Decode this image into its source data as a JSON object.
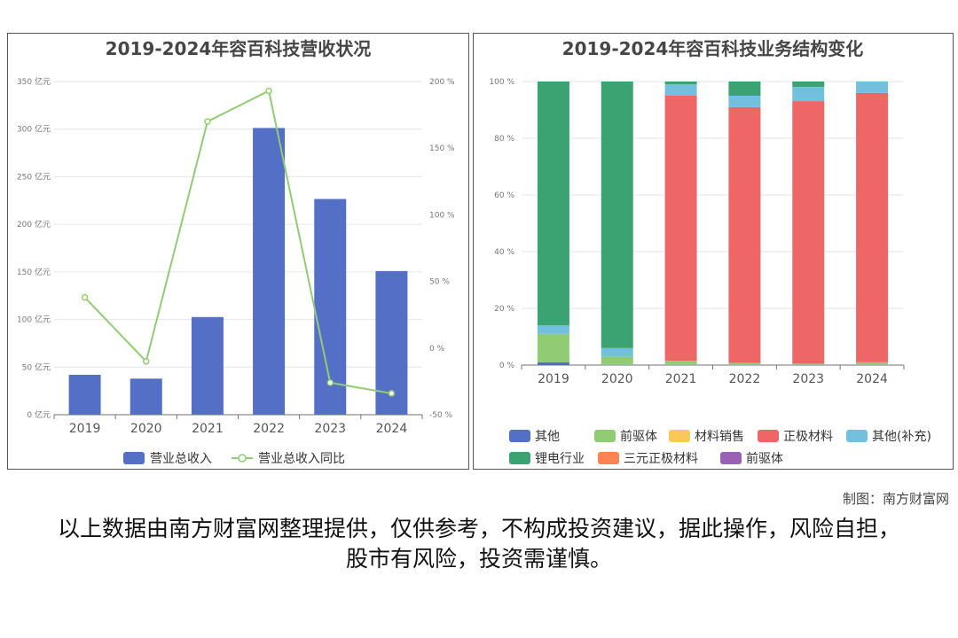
{
  "credit": "制图：南方财富网",
  "footer": "以上数据由南方财富网整理提供，仅供参考，不构成投资建议，据此操作，风险自担，股市有风险，投资需谨慎。",
  "chart_data": [
    {
      "type": "bar",
      "title": "2019-2024年容百科技营收状况",
      "categories": [
        "2019",
        "2020",
        "2021",
        "2022",
        "2023",
        "2024"
      ],
      "series": [
        {
          "name": "营业总收入",
          "type": "bar",
          "axis": "left",
          "color": "#5470c6",
          "values": [
            41.9,
            37.9,
            102.6,
            301.2,
            226.6,
            150.9
          ]
        },
        {
          "name": "营业总收入同比",
          "type": "line",
          "axis": "right",
          "color": "#91cc75",
          "values": [
            38,
            -10,
            170,
            193,
            -26,
            -34
          ]
        }
      ],
      "y_left": {
        "ticks": [
          "0 亿元",
          "50 亿元",
          "100 亿元",
          "150 亿元",
          "200 亿元",
          "250 亿元",
          "300 亿元",
          "350 亿元"
        ],
        "range": [
          0,
          350
        ]
      },
      "y_right": {
        "ticks": [
          "-50 %",
          "0 %",
          "50 %",
          "100 %",
          "150 %",
          "200 %"
        ],
        "range": [
          -50,
          200
        ]
      },
      "grid": true,
      "legend_position": "bottom"
    },
    {
      "type": "bar",
      "stacked": true,
      "title": "2019-2024年容百科技业务结构变化",
      "categories": [
        "2019",
        "2020",
        "2021",
        "2022",
        "2023",
        "2024"
      ],
      "series": [
        {
          "name": "其他",
          "color": "#5470c6",
          "values": [
            1,
            0,
            0,
            0,
            0,
            0
          ]
        },
        {
          "name": "前驱体",
          "color": "#91cc75",
          "values": [
            10,
            3,
            1.5,
            0.8,
            0.5,
            1
          ]
        },
        {
          "name": "材料销售",
          "color": "#fac858",
          "values": [
            0,
            0,
            0,
            0,
            0,
            0
          ]
        },
        {
          "name": "正极材料",
          "color": "#ee6666",
          "values": [
            0,
            0,
            93.5,
            90.2,
            92.6,
            95
          ]
        },
        {
          "name": "其他(补充)",
          "color": "#73c0de",
          "values": [
            3,
            3,
            4,
            4,
            5,
            4
          ]
        },
        {
          "name": "锂电行业",
          "color": "#3ba272",
          "values": [
            86,
            94,
            1,
            5,
            1.9,
            0
          ]
        },
        {
          "name": "三元正极材料",
          "color": "#fc8452",
          "values": [
            0,
            0,
            0,
            0,
            0,
            0
          ]
        },
        {
          "name": "前驱体",
          "color": "#9a60b4",
          "values": [
            0,
            0,
            0,
            0,
            0,
            0
          ]
        }
      ],
      "y_axis": {
        "ticks": [
          "0 %",
          "20 %",
          "40 %",
          "60 %",
          "80 %",
          "100 %"
        ],
        "range": [
          0,
          100
        ]
      },
      "grid": true,
      "legend_position": "bottom"
    }
  ]
}
